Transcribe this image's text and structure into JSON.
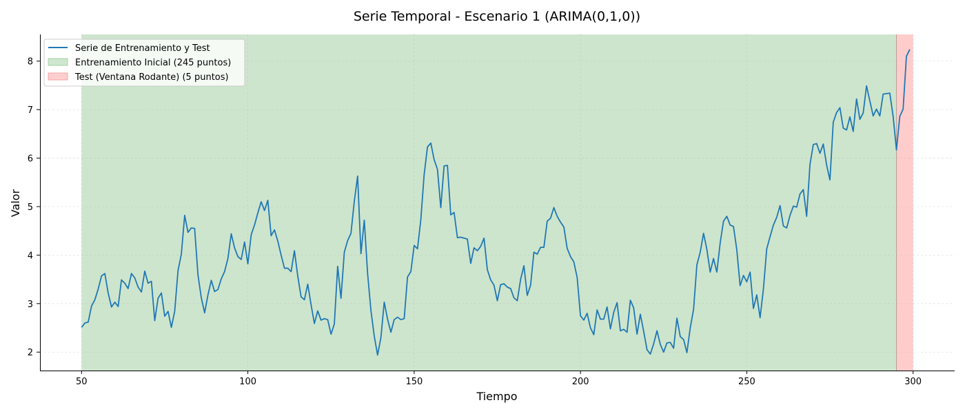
{
  "chart_data": {
    "type": "line",
    "title": "Serie Temporal - Escenario 1 (ARIMA(0,1,0))",
    "xlabel": "Tiempo",
    "ylabel": "Valor",
    "xlim": [
      37.5,
      312.5
    ],
    "ylim": [
      1.62,
      8.55
    ],
    "x_ticks": [
      50,
      100,
      150,
      200,
      250,
      300
    ],
    "y_ticks": [
      2,
      3,
      4,
      5,
      6,
      7,
      8
    ],
    "grid": true,
    "legend_position": "upper-left",
    "regions": [
      {
        "name": "Entrenamiento Inicial (245 puntos)",
        "x_start": 50,
        "x_end": 295,
        "color": "#cde5cd",
        "legend_fill": "#cfe6cf",
        "legend_edge": "#a9d3a9"
      },
      {
        "name": "Test (Ventana Rodante) (5 puntos)",
        "x_start": 295,
        "x_end": 300,
        "color": "#ffcccc",
        "legend_fill": "#ffcfcf",
        "legend_edge": "#f2a3a3"
      }
    ],
    "series": [
      {
        "name": "Serie de Entrenamiento y Test",
        "color": "#1f77b4",
        "x_start": 50,
        "x_step": 1,
        "values": [
          2.51,
          2.6,
          2.62,
          2.95,
          3.08,
          3.3,
          3.57,
          3.62,
          3.22,
          2.93,
          3.03,
          2.94,
          3.49,
          3.42,
          3.31,
          3.62,
          3.53,
          3.34,
          3.24,
          3.67,
          3.42,
          3.46,
          2.65,
          3.11,
          3.22,
          2.74,
          2.84,
          2.51,
          2.84,
          3.68,
          4.02,
          4.82,
          4.47,
          4.56,
          4.55,
          3.59,
          3.12,
          2.81,
          3.18,
          3.48,
          3.25,
          3.29,
          3.51,
          3.66,
          3.93,
          4.44,
          4.15,
          3.97,
          3.91,
          4.27,
          3.82,
          4.42,
          4.62,
          4.87,
          5.1,
          4.92,
          5.13,
          4.4,
          4.52,
          4.29,
          4.0,
          3.73,
          3.73,
          3.66,
          4.09,
          3.57,
          3.14,
          3.08,
          3.4,
          2.98,
          2.59,
          2.85,
          2.66,
          2.69,
          2.67,
          2.37,
          2.58,
          3.77,
          3.11,
          4.06,
          4.3,
          4.45,
          5.11,
          5.63,
          4.03,
          4.72,
          3.62,
          2.86,
          2.33,
          1.94,
          2.3,
          3.03,
          2.68,
          2.41,
          2.67,
          2.72,
          2.67,
          2.69,
          3.55,
          3.66,
          4.2,
          4.13,
          4.73,
          5.66,
          6.23,
          6.31,
          5.97,
          5.77,
          4.98,
          5.84,
          5.85,
          4.83,
          4.88,
          4.36,
          4.37,
          4.35,
          4.33,
          3.83,
          4.15,
          4.09,
          4.18,
          4.35,
          3.7,
          3.49,
          3.38,
          3.06,
          3.39,
          3.41,
          3.34,
          3.31,
          3.12,
          3.06,
          3.5,
          3.78,
          3.17,
          3.38,
          4.06,
          4.02,
          4.16,
          4.16,
          4.7,
          4.76,
          4.98,
          4.8,
          4.68,
          4.58,
          4.14,
          3.97,
          3.86,
          3.54,
          2.75,
          2.66,
          2.8,
          2.5,
          2.36,
          2.87,
          2.68,
          2.68,
          2.93,
          2.48,
          2.82,
          3.02,
          2.44,
          2.47,
          2.41,
          3.07,
          2.91,
          2.37,
          2.78,
          2.43,
          2.05,
          1.96,
          2.17,
          2.44,
          2.16,
          2.0,
          2.19,
          2.2,
          2.08,
          2.7,
          2.32,
          2.26,
          1.99,
          2.5,
          2.88,
          3.8,
          4.06,
          4.45,
          4.12,
          3.65,
          3.93,
          3.65,
          4.25,
          4.7,
          4.8,
          4.62,
          4.59,
          4.11,
          3.37,
          3.58,
          3.45,
          3.65,
          2.9,
          3.18,
          2.71,
          3.3,
          4.13,
          4.38,
          4.62,
          4.78,
          5.02,
          4.6,
          4.56,
          4.82,
          5.01,
          4.99,
          5.26,
          5.35,
          4.8,
          5.87,
          6.28,
          6.3,
          6.1,
          6.29,
          5.86,
          5.55,
          6.74,
          6.94,
          7.04,
          6.62,
          6.58,
          6.85,
          6.55,
          7.22,
          6.8,
          6.93,
          7.49,
          7.18,
          6.87,
          7.01,
          6.87,
          7.32,
          7.33,
          7.34,
          6.86,
          6.17,
          6.86,
          7.01,
          8.1,
          8.24
        ]
      }
    ]
  }
}
